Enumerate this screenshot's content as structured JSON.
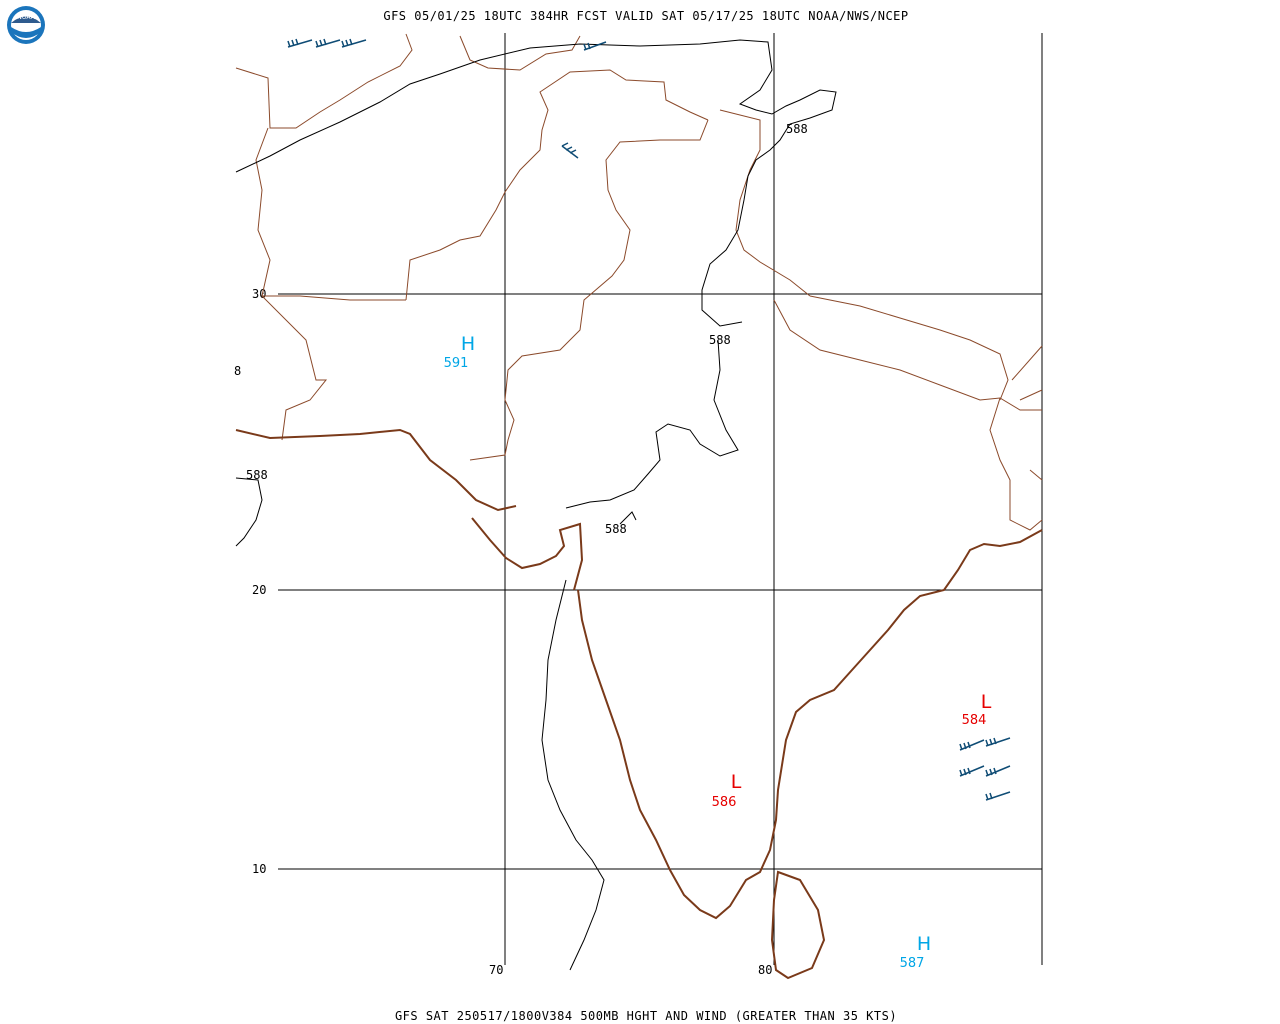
{
  "header": {
    "title": "GFS 05/01/25 18UTC 384HR FCST VALID SAT 05/17/25 18UTC NOAA/NWS/NCEP",
    "footer": "GFS SAT 250517/1800V384 500MB HGHT AND WIND (GREATER THAN 35 KTS)"
  },
  "logo": {
    "text": "NOAA"
  },
  "axes": {
    "lat_labels": [
      "30",
      "20",
      "10"
    ],
    "lon_labels": [
      "70",
      "80"
    ]
  },
  "contours": {
    "labels": [
      "588",
      "588",
      "588",
      "588",
      "8"
    ]
  },
  "centers": {
    "highs": [
      {
        "symbol": "H",
        "value": "591"
      },
      {
        "symbol": "H",
        "value": "587"
      }
    ],
    "lows": [
      {
        "symbol": "L",
        "value": "586"
      },
      {
        "symbol": "L",
        "value": "584"
      }
    ]
  },
  "colors": {
    "high": "#00a6e6",
    "low": "#e60000",
    "border": "#8b4a2b",
    "wind_barb": "#0f4c75"
  }
}
